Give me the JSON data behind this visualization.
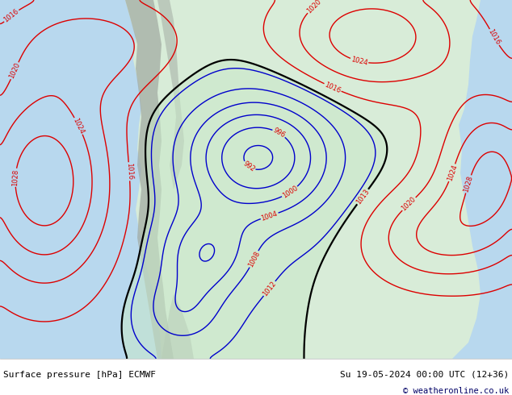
{
  "title_left": "Surface pressure [hPa] ECMWF",
  "title_right": "Su 19-05-2024 00:00 UTC (12+36)",
  "copyright": "© weatheronline.co.uk",
  "map_bg_color": "#ffffff",
  "ocean_color": "#b8d8ee",
  "land_color": "#d8ecd8",
  "mountain_color": "#aaaaaa",
  "bottom_bar_color": "#ffffff",
  "isobar_red": "#dd0000",
  "isobar_blue": "#0000cc",
  "isobar_black": "#000000",
  "green_fill": "#c8e8c8",
  "fig_width": 6.34,
  "fig_height": 4.9,
  "dpi": 100
}
